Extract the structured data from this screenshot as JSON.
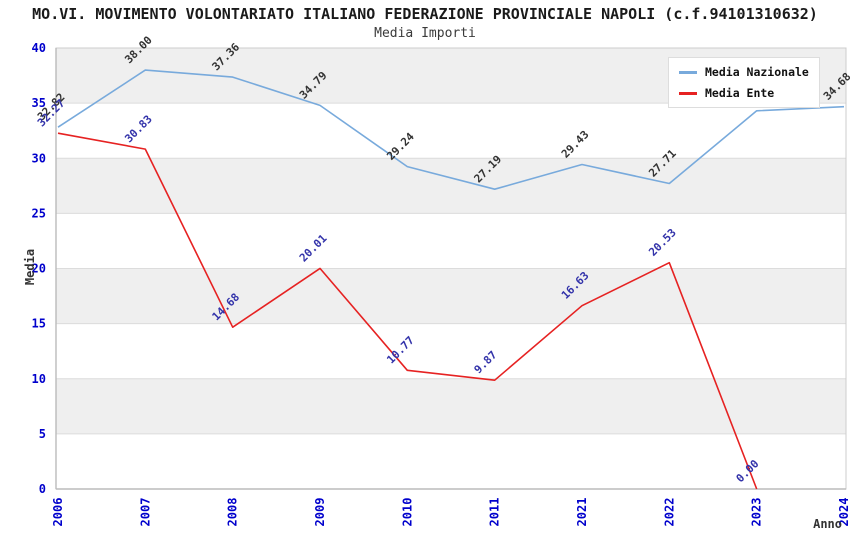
{
  "title": "MO.VI. MOVIMENTO VOLONTARIATO ITALIANO FEDERAZIONE PROVINCIALE NAPOLI (c.f.94101310632)",
  "subtitle": "Media Importi",
  "legend": {
    "items": [
      {
        "label": "Media Nazionale",
        "color": "#78aadc"
      },
      {
        "label": "Media Ente",
        "color": "#e62222"
      }
    ]
  },
  "colors": {
    "band_gray": "#efefef",
    "band_white": "#ffffff",
    "gridline": "#dcdcdc",
    "plot_border": "#cccccc",
    "axis_line": "#bbbbbb",
    "tick_label": "#0000cc",
    "nazionale_line": "#78aadc",
    "nazionale_label": "#333333",
    "ente_line": "#e62222",
    "ente_label": "#3333aa"
  },
  "chart_data": {
    "type": "line",
    "title": "MO.VI. MOVIMENTO VOLONTARIATO ITALIANO FEDERAZIONE PROVINCIALE NAPOLI (c.f.94101310632)",
    "subtitle": "Media Importi",
    "xlabel": "Anno",
    "ylabel": "Media",
    "ylim": [
      0,
      40
    ],
    "yticks": [
      0,
      5,
      10,
      15,
      20,
      25,
      30,
      35,
      40
    ],
    "grid": "horizontal-bands-alternating",
    "legend_position": "top-right",
    "categories": [
      "2006",
      "2007",
      "2008",
      "2009",
      "2010",
      "2011",
      "2021",
      "2022",
      "2023",
      "2024"
    ],
    "series": [
      {
        "name": "Media Nazionale",
        "values": [
          32.82,
          38.0,
          37.36,
          34.79,
          29.24,
          27.19,
          29.43,
          27.71,
          34.3,
          34.68
        ],
        "point_labels": [
          "32.82",
          "38.00",
          "37.36",
          "34.79",
          "29.24",
          "27.19",
          "29.43",
          "27.71",
          "34.30",
          "34.68"
        ],
        "note": "2023 point label occluded by legend box"
      },
      {
        "name": "Media Ente",
        "values": [
          32.27,
          30.83,
          14.68,
          20.01,
          10.77,
          9.87,
          16.63,
          20.53,
          0.0,
          null
        ],
        "point_labels": [
          "32.27",
          "30.83",
          "14.68",
          "20.01",
          "10.77",
          "9.87",
          "16.63",
          "20.53",
          "0.00",
          ""
        ]
      }
    ]
  }
}
